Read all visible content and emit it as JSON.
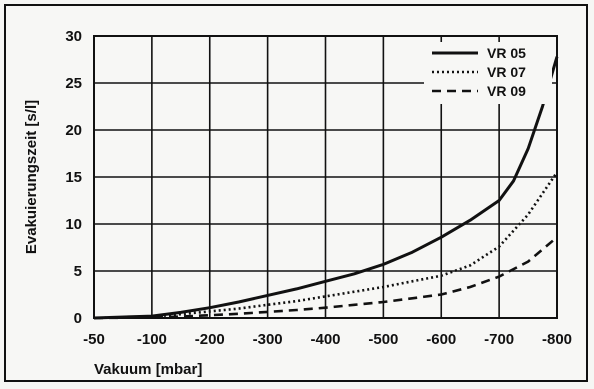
{
  "chart_data": {
    "type": "line",
    "title": "",
    "xlabel": "Vakuum [mbar]",
    "ylabel": "Evakuierungszeit [s/l]",
    "x_ticks": [
      -50,
      -100,
      -200,
      -300,
      -400,
      -500,
      -600,
      -700,
      -800
    ],
    "y_ticks": [
      0,
      5,
      10,
      15,
      20,
      25,
      30
    ],
    "xlim": [
      -50,
      -800
    ],
    "ylim": [
      0,
      30
    ],
    "grid": true,
    "legend_position": "top-right",
    "series": [
      {
        "name": "VR 05",
        "style": "solid",
        "color": "#111111",
        "x": [
          -50,
          -100,
          -150,
          -200,
          -250,
          -300,
          -350,
          -400,
          -450,
          -500,
          -550,
          -600,
          -650,
          -700,
          -725,
          -750,
          -775,
          -800
        ],
        "y": [
          0,
          0.2,
          0.6,
          1.1,
          1.7,
          2.4,
          3.1,
          3.9,
          4.7,
          5.7,
          7.0,
          8.6,
          10.4,
          12.5,
          14.6,
          18.0,
          22.5,
          27.8
        ]
      },
      {
        "name": "VR 07",
        "style": "dotted",
        "color": "#111111",
        "x": [
          -50,
          -100,
          -150,
          -200,
          -250,
          -300,
          -350,
          -400,
          -450,
          -500,
          -550,
          -600,
          -650,
          -700,
          -750,
          -800
        ],
        "y": [
          0,
          0.15,
          0.4,
          0.7,
          1.0,
          1.4,
          1.8,
          2.3,
          2.8,
          3.3,
          3.9,
          4.5,
          5.6,
          7.6,
          11.0,
          15.5
        ]
      },
      {
        "name": "VR 09",
        "style": "dashed",
        "color": "#111111",
        "x": [
          -50,
          -100,
          -150,
          -200,
          -250,
          -300,
          -350,
          -400,
          -450,
          -500,
          -550,
          -600,
          -650,
          -700,
          -750,
          -800
        ],
        "y": [
          0,
          0.05,
          0.15,
          0.3,
          0.45,
          0.65,
          0.85,
          1.1,
          1.4,
          1.7,
          2.1,
          2.5,
          3.3,
          4.4,
          6.0,
          8.6
        ]
      }
    ]
  }
}
